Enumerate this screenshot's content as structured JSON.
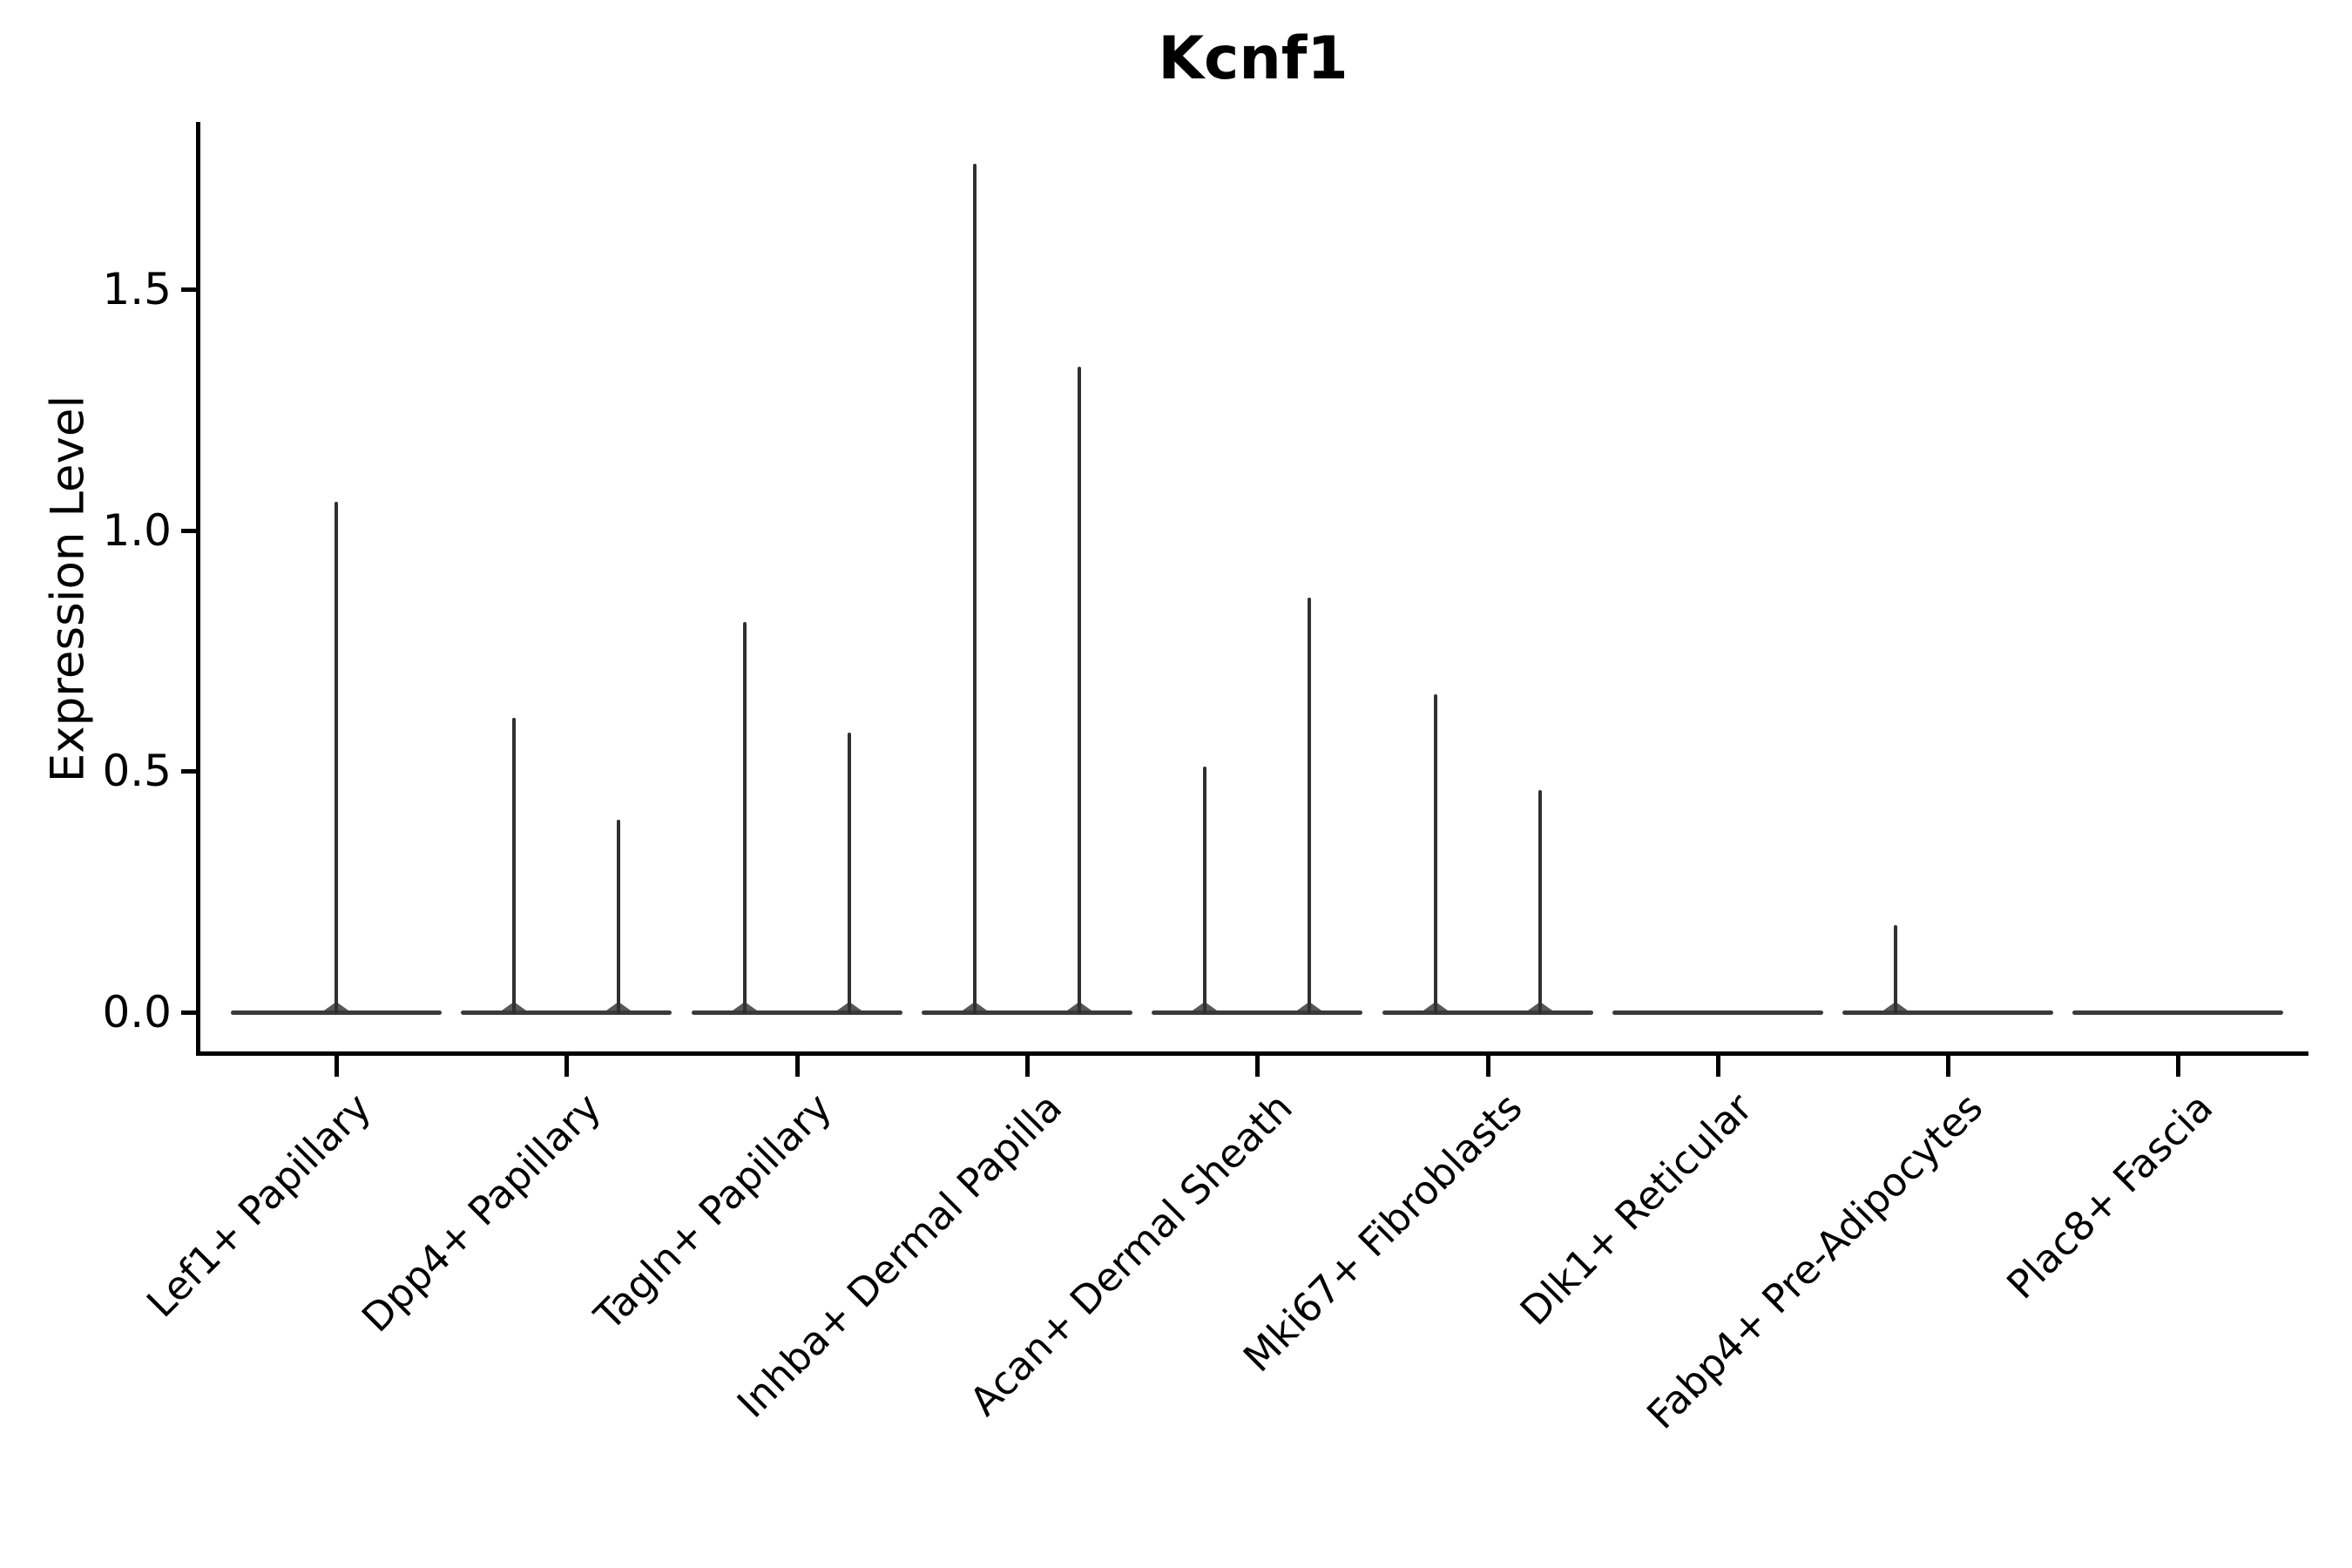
{
  "title": "Kcnf1",
  "y_axis": {
    "label": "Expression Level",
    "ticks": [
      {
        "label": "0.0",
        "value": 0.0
      },
      {
        "label": "0.5",
        "value": 0.5
      },
      {
        "label": "1.0",
        "value": 1.0
      },
      {
        "label": "1.5",
        "value": 1.5
      }
    ]
  },
  "colors": {
    "background": "#ffffff",
    "spine": "#000000",
    "violin_body": "#3a3a3a",
    "violin_spike": "#303030",
    "text": "#000000"
  },
  "chart_data": {
    "type": "violin",
    "title": "Kcnf1",
    "xlabel": "",
    "ylabel": "Expression Level",
    "ylim": [
      -0.085,
      1.85
    ],
    "yticks": [
      0.0,
      0.5,
      1.0,
      1.5
    ],
    "grid": false,
    "legend": "none",
    "categories": [
      "Lef1+ Papillary",
      "Dpp4+ Papillary",
      "Tagln+ Papillary",
      "Inhba+ Dermal Papilla",
      "Acan+ Dermal Sheath",
      "Mki67+ Fibroblasts",
      "Dlk1+ Reticular",
      "Fabp4+ Pre-Adipocytes",
      "Plac8+ Fascia"
    ],
    "series": [
      {
        "category": "Lef1+ Papillary",
        "violins": [
          {
            "position": "center",
            "peak": 1.06
          }
        ]
      },
      {
        "category": "Dpp4+ Papillary",
        "violins": [
          {
            "position": "left",
            "peak": 0.61
          },
          {
            "position": "right",
            "peak": 0.4
          }
        ]
      },
      {
        "category": "Tagln+ Papillary",
        "violins": [
          {
            "position": "left",
            "peak": 0.81
          },
          {
            "position": "right",
            "peak": 0.58
          }
        ]
      },
      {
        "category": "Inhba+ Dermal Papilla",
        "violins": [
          {
            "position": "left",
            "peak": 1.76
          },
          {
            "position": "right",
            "peak": 1.34
          }
        ]
      },
      {
        "category": "Acan+ Dermal Sheath",
        "violins": [
          {
            "position": "left",
            "peak": 0.51
          },
          {
            "position": "right",
            "peak": 0.86
          }
        ]
      },
      {
        "category": "Mki67+ Fibroblasts",
        "violins": [
          {
            "position": "left",
            "peak": 0.66
          },
          {
            "position": "right",
            "peak": 0.46
          }
        ]
      },
      {
        "category": "Dlk1+ Reticular",
        "violins": []
      },
      {
        "category": "Fabp4+ Pre-Adipocytes",
        "violins": [
          {
            "position": "left",
            "peak": 0.18
          }
        ]
      },
      {
        "category": "Plac8+ Fascia",
        "violins": []
      }
    ],
    "baseline_value": 0.0,
    "description_of_marks": "each category shows a collapsed violin: a flat dark bar at expression 0 plus thin vertical spikes reaching the peak expression value"
  }
}
